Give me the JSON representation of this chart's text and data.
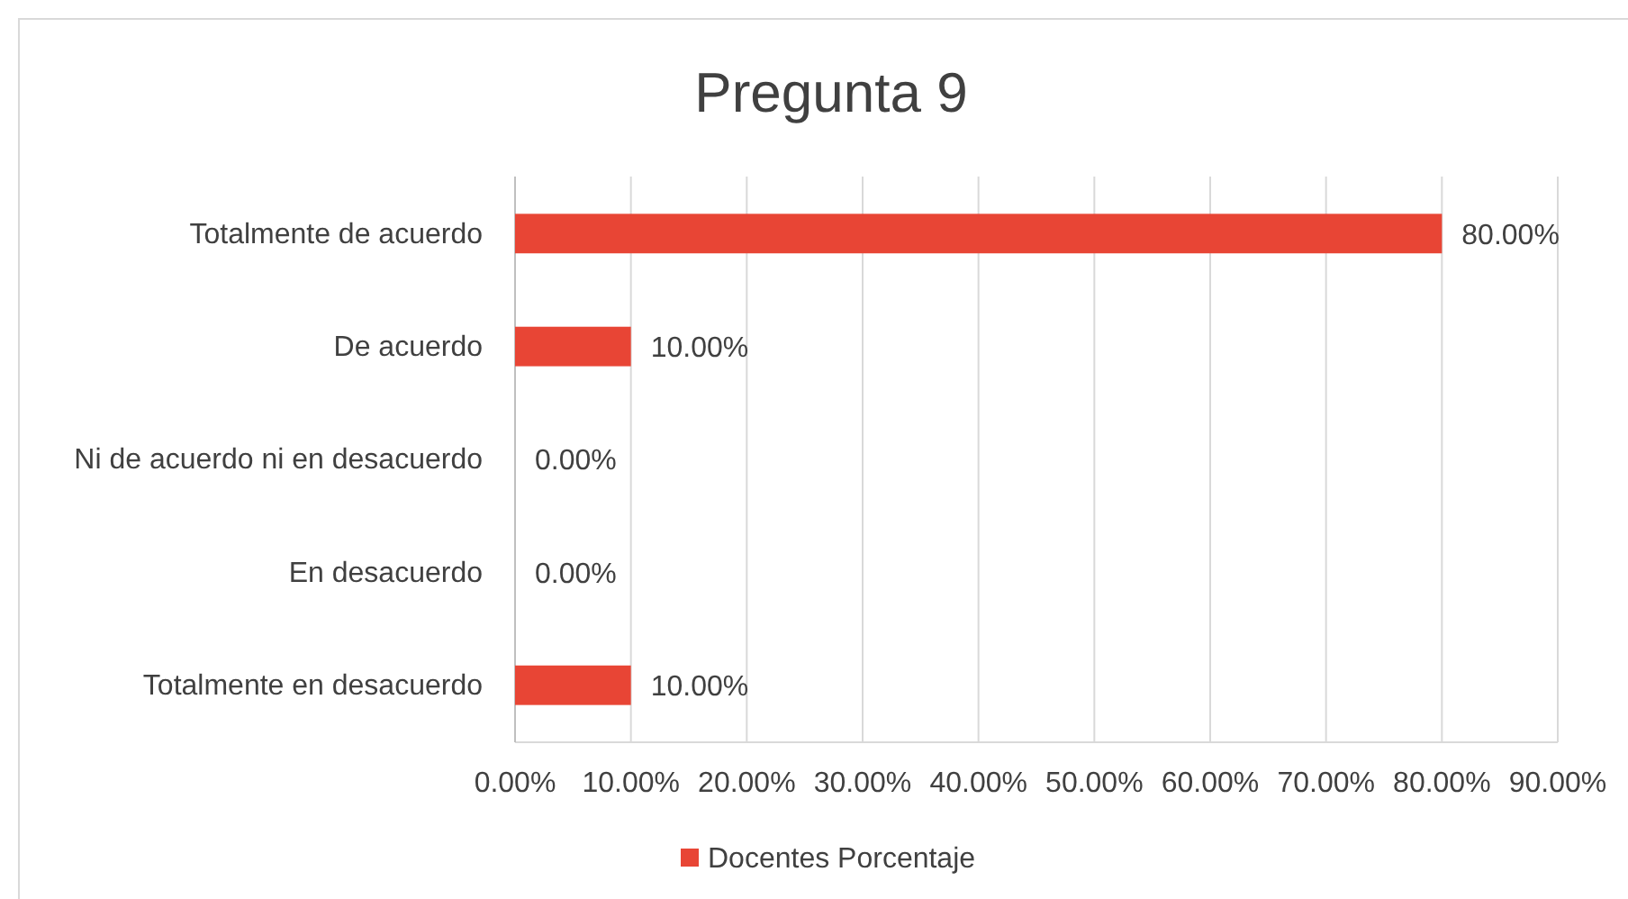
{
  "chart_data": {
    "type": "bar",
    "title": "Pregunta 9",
    "orientation": "horizontal",
    "categories": [
      "Totalmente de acuerdo",
      "De acuerdo",
      "Ni de acuerdo ni en desacuerdo",
      "En desacuerdo",
      "Totalmente en desacuerdo"
    ],
    "series": [
      {
        "name": "Docentes Porcentaje",
        "color": "#e84535",
        "values": [
          80,
          10,
          0,
          0,
          10
        ],
        "value_labels": [
          "80.00%",
          "10.00%",
          "0.00%",
          "0.00%",
          "10.00%"
        ]
      }
    ],
    "xlim": [
      0,
      90
    ],
    "xticks": [
      {
        "value": 0,
        "label": "0.00%"
      },
      {
        "value": 10,
        "label": "10.00%"
      },
      {
        "value": 20,
        "label": "20.00%"
      },
      {
        "value": 30,
        "label": "30.00%"
      },
      {
        "value": 40,
        "label": "40.00%"
      },
      {
        "value": 50,
        "label": "50.00%"
      },
      {
        "value": 60,
        "label": "60.00%"
      },
      {
        "value": 70,
        "label": "70.00%"
      },
      {
        "value": 80,
        "label": "80.00%"
      },
      {
        "value": 90,
        "label": "90.00%"
      }
    ],
    "grid": "x",
    "legend": "bottom"
  }
}
